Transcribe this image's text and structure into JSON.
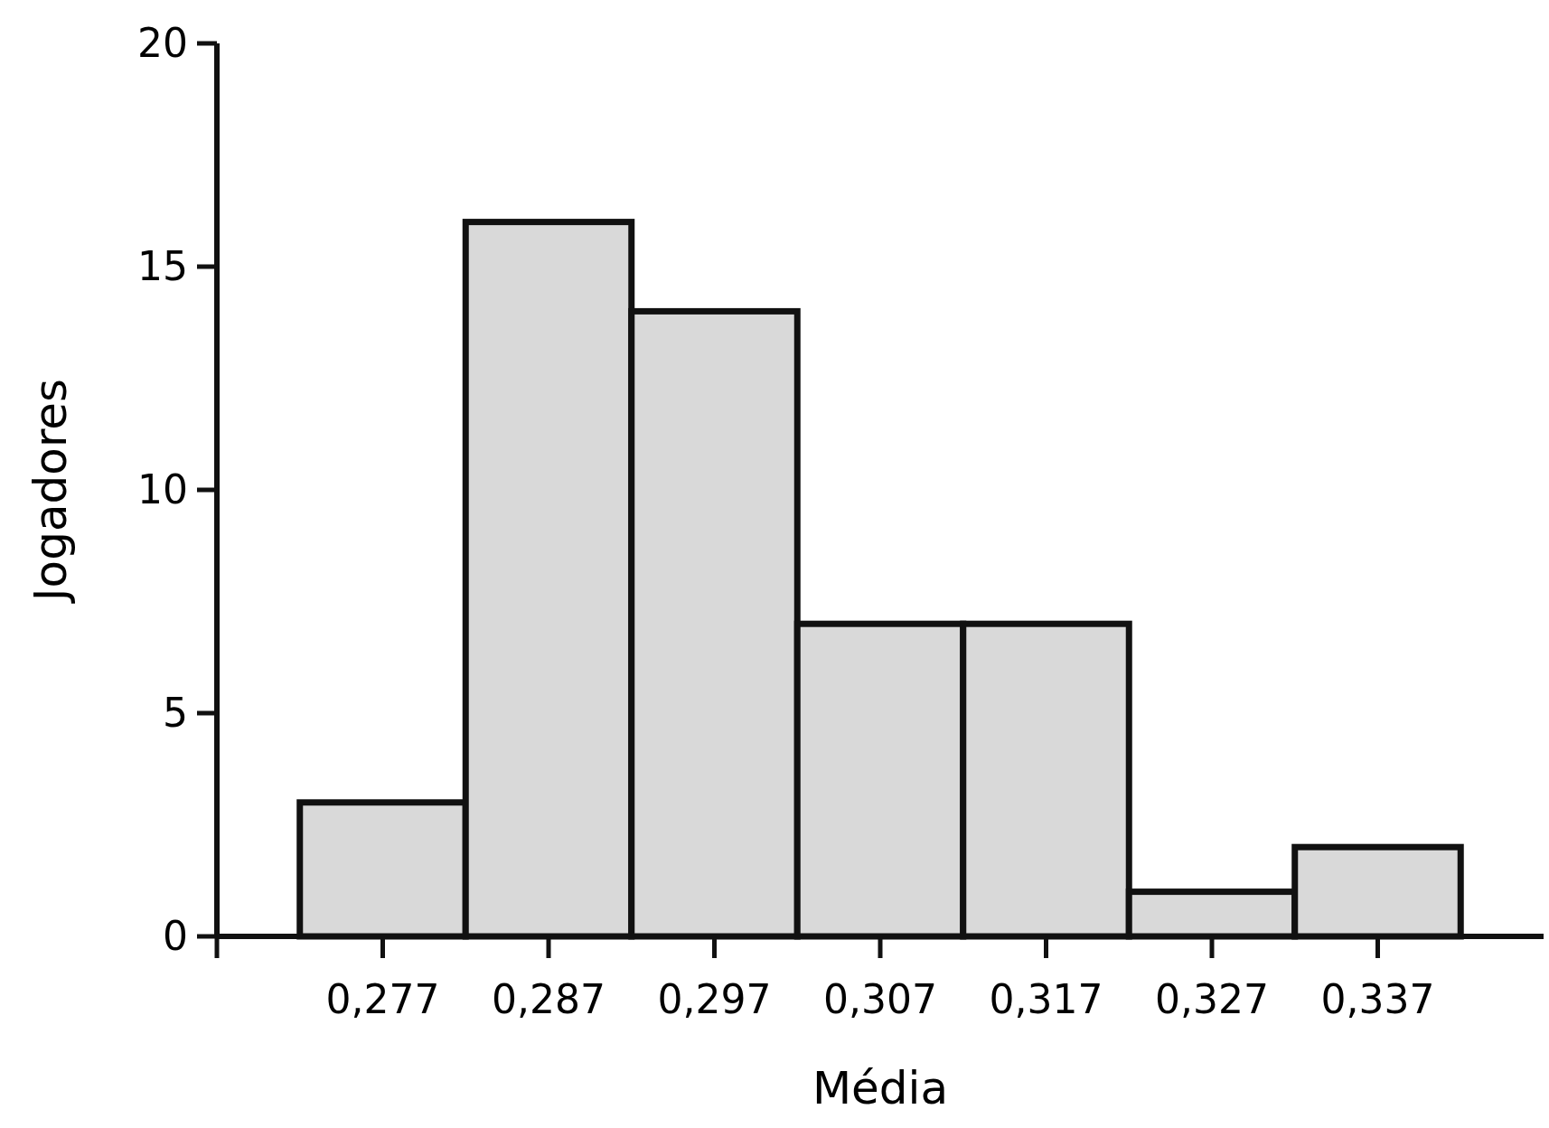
{
  "chart_data": {
    "type": "histogram",
    "xlabel": "Média",
    "ylabel": "Jogadores",
    "bins": [
      0.272,
      0.282,
      0.292,
      0.302,
      0.312,
      0.322,
      0.332,
      0.342
    ],
    "values": [
      3,
      16,
      14,
      7,
      7,
      1,
      2
    ],
    "color": "#d9d9d9",
    "xlim": [
      0.267,
      0.347
    ],
    "xticks": [
      {
        "value": 0.267,
        "label": null
      },
      {
        "value": 0.277,
        "label": "0,277"
      },
      {
        "value": 0.287,
        "label": "0,287"
      },
      {
        "value": 0.297,
        "label": "0,297"
      },
      {
        "value": 0.307,
        "label": "0,307"
      },
      {
        "value": 0.317,
        "label": "0,317"
      },
      {
        "value": 0.327,
        "label": "0,327"
      },
      {
        "value": 0.337,
        "label": "0,337"
      }
    ],
    "ylim": [
      0,
      20
    ],
    "yticks": [
      0,
      5,
      10,
      15,
      20
    ],
    "grid": false
  }
}
